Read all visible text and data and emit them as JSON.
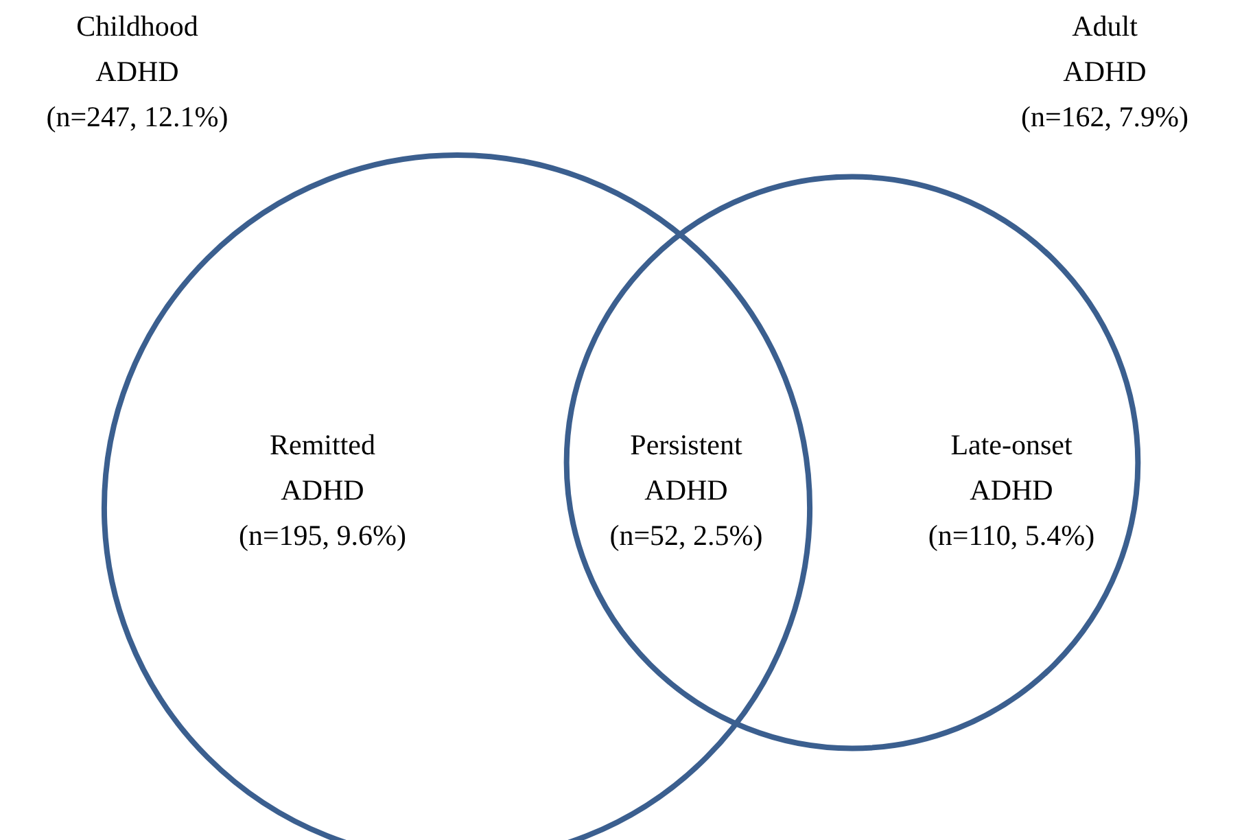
{
  "chart_data": {
    "type": "other",
    "categories": [
      "Remitted\nADHD",
      "Persistent\nADHD",
      "Late-onset\nADHD"
    ],
    "values": [
      195,
      52,
      110
    ],
    "value_labels": [
      "(n=195, 9.6%)",
      "(n=52, 2.5%)",
      "(n=110, 5.4%)"
    ],
    "annotations": [
      "Childhood\nADHD\n(n=247, 12.1%)",
      "Adult\nADHD\n(n=162, 7.9%)"
    ],
    "color": "#3b5f8f"
  }
}
